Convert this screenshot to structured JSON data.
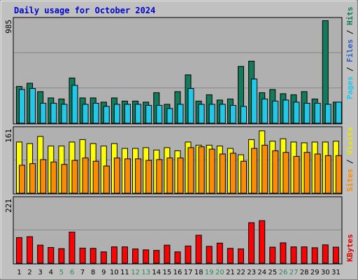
{
  "chart_data": [
    {
      "type": "bar",
      "title": "Daily usage for October 2024",
      "categories": [
        "1",
        "2",
        "3",
        "4",
        "5",
        "6",
        "7",
        "8",
        "9",
        "10",
        "11",
        "12",
        "13",
        "14",
        "15",
        "16",
        "17",
        "18",
        "19",
        "20",
        "21",
        "22",
        "23",
        "24",
        "25",
        "26",
        "27",
        "28",
        "29",
        "30",
        "31"
      ],
      "weekend_days": [
        "5",
        "6",
        "12",
        "13",
        "19",
        "20",
        "26",
        "27"
      ],
      "ymax_label": "985",
      "ylim": [
        0,
        985
      ],
      "legend": [
        "Pages",
        "Files",
        "Hits"
      ],
      "series": [
        {
          "name": "Hits",
          "color": "#117b5b",
          "values": [
            350,
            380,
            300,
            240,
            230,
            430,
            240,
            240,
            200,
            240,
            210,
            210,
            200,
            290,
            180,
            300,
            460,
            210,
            270,
            220,
            230,
            540,
            590,
            290,
            320,
            280,
            270,
            300,
            230,
            975,
            200
          ]
        },
        {
          "name": "Files",
          "color": "#22c8e8",
          "values": [
            320,
            330,
            190,
            190,
            180,
            360,
            180,
            190,
            160,
            180,
            180,
            180,
            170,
            170,
            140,
            180,
            330,
            180,
            180,
            180,
            170,
            160,
            420,
            230,
            210,
            220,
            200,
            190,
            190,
            180,
            200
          ]
        }
      ]
    },
    {
      "type": "bar",
      "ymax_label": "161",
      "ylim": [
        0,
        161
      ],
      "legend": [
        "Sites",
        "Visits"
      ],
      "series": [
        {
          "name": "Visits",
          "color": "#ffff00",
          "values": [
            128,
            124,
            142,
            118,
            118,
            128,
            134,
            124,
            118,
            124,
            112,
            112,
            114,
            108,
            114,
            106,
            128,
            120,
            120,
            118,
            112,
            96,
            134,
            156,
            130,
            136,
            128,
            126,
            128,
            128,
            130
          ]
        },
        {
          "name": "Sites",
          "color": "#ff8c00",
          "values": [
            70,
            74,
            84,
            78,
            72,
            82,
            88,
            80,
            68,
            88,
            86,
            86,
            82,
            84,
            88,
            88,
            114,
            116,
            110,
            98,
            100,
            80,
            112,
            120,
            106,
            102,
            92,
            102,
            98,
            94,
            94
          ]
        }
      ]
    },
    {
      "type": "bar",
      "ymax_label": "221",
      "ylim": [
        0,
        221
      ],
      "legend": [
        "KBytes"
      ],
      "series": [
        {
          "name": "KBytes",
          "color": "#ff0000",
          "values": [
            88,
            91,
            62,
            54,
            50,
            107,
            52,
            51,
            39,
            56,
            56,
            49,
            46,
            44,
            62,
            39,
            59,
            96,
            58,
            69,
            51,
            49,
            139,
            146,
            55,
            70,
            56,
            56,
            53,
            63,
            55
          ]
        }
      ]
    }
  ]
}
